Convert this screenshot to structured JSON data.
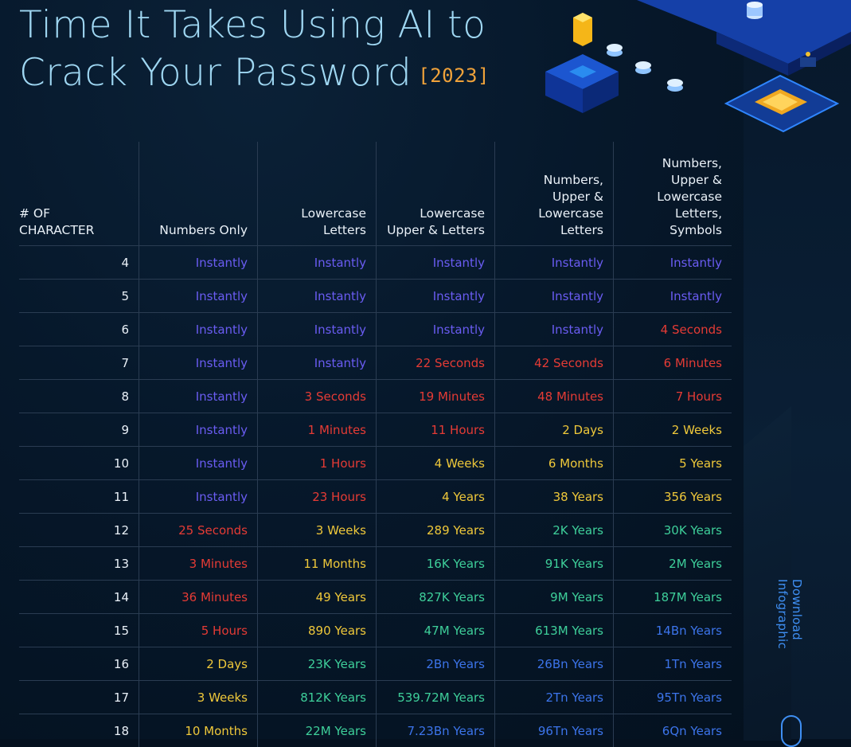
{
  "header": {
    "title_line1": "Time It Takes Using AI to",
    "title_line2": "Crack Your Password",
    "year": "[2023]"
  },
  "colors": {
    "instant": "#6a5cf2",
    "red": "#e53b35",
    "yellow": "#efc83a",
    "green": "#3ecf9a",
    "blue": "#3c74ea",
    "title": "#9fd7f2",
    "year": "#f0a23a"
  },
  "table": {
    "columns": [
      "# OF\nCHARACTER",
      "Numbers Only",
      "Lowercase\nLetters",
      "Lowercase\nUpper & Letters",
      "Numbers,\nUpper &\nLowercase\nLetters",
      "Numbers,\nUpper &\nLowercase\nLetters,\nSymbols"
    ],
    "rows": [
      {
        "chars": "4",
        "cells": [
          {
            "t": "Instantly",
            "c": "instant"
          },
          {
            "t": "Instantly",
            "c": "instant"
          },
          {
            "t": "Instantly",
            "c": "instant"
          },
          {
            "t": "Instantly",
            "c": "instant"
          },
          {
            "t": "Instantly",
            "c": "instant"
          }
        ]
      },
      {
        "chars": "5",
        "cells": [
          {
            "t": "Instantly",
            "c": "instant"
          },
          {
            "t": "Instantly",
            "c": "instant"
          },
          {
            "t": "Instantly",
            "c": "instant"
          },
          {
            "t": "Instantly",
            "c": "instant"
          },
          {
            "t": "Instantly",
            "c": "instant"
          }
        ]
      },
      {
        "chars": "6",
        "cells": [
          {
            "t": "Instantly",
            "c": "instant"
          },
          {
            "t": "Instantly",
            "c": "instant"
          },
          {
            "t": "Instantly",
            "c": "instant"
          },
          {
            "t": "Instantly",
            "c": "instant"
          },
          {
            "t": "4 Seconds",
            "c": "red"
          }
        ]
      },
      {
        "chars": "7",
        "cells": [
          {
            "t": "Instantly",
            "c": "instant"
          },
          {
            "t": "Instantly",
            "c": "instant"
          },
          {
            "t": "22 Seconds",
            "c": "red"
          },
          {
            "t": "42 Seconds",
            "c": "red"
          },
          {
            "t": "6 Minutes",
            "c": "red"
          }
        ]
      },
      {
        "chars": "8",
        "cells": [
          {
            "t": "Instantly",
            "c": "instant"
          },
          {
            "t": "3 Seconds",
            "c": "red"
          },
          {
            "t": "19 Minutes",
            "c": "red"
          },
          {
            "t": "48 Minutes",
            "c": "red"
          },
          {
            "t": "7 Hours",
            "c": "red"
          }
        ]
      },
      {
        "chars": "9",
        "cells": [
          {
            "t": "Instantly",
            "c": "instant"
          },
          {
            "t": "1 Minutes",
            "c": "red"
          },
          {
            "t": "11 Hours",
            "c": "red"
          },
          {
            "t": "2 Days",
            "c": "yellow"
          },
          {
            "t": "2 Weeks",
            "c": "yellow"
          }
        ]
      },
      {
        "chars": "10",
        "cells": [
          {
            "t": "Instantly",
            "c": "instant"
          },
          {
            "t": "1 Hours",
            "c": "red"
          },
          {
            "t": "4 Weeks",
            "c": "yellow"
          },
          {
            "t": "6 Months",
            "c": "yellow"
          },
          {
            "t": "5 Years",
            "c": "yellow"
          }
        ]
      },
      {
        "chars": "11",
        "cells": [
          {
            "t": "Instantly",
            "c": "instant"
          },
          {
            "t": "23 Hours",
            "c": "red"
          },
          {
            "t": "4 Years",
            "c": "yellow"
          },
          {
            "t": "38 Years",
            "c": "yellow"
          },
          {
            "t": "356 Years",
            "c": "yellow"
          }
        ]
      },
      {
        "chars": "12",
        "cells": [
          {
            "t": "25 Seconds",
            "c": "red"
          },
          {
            "t": "3 Weeks",
            "c": "yellow"
          },
          {
            "t": "289 Years",
            "c": "yellow"
          },
          {
            "t": "2K Years",
            "c": "green"
          },
          {
            "t": "30K Years",
            "c": "green"
          }
        ]
      },
      {
        "chars": "13",
        "cells": [
          {
            "t": "3 Minutes",
            "c": "red"
          },
          {
            "t": "11 Months",
            "c": "yellow"
          },
          {
            "t": "16K Years",
            "c": "green"
          },
          {
            "t": "91K Years",
            "c": "green"
          },
          {
            "t": "2M Years",
            "c": "green"
          }
        ]
      },
      {
        "chars": "14",
        "cells": [
          {
            "t": "36 Minutes",
            "c": "red"
          },
          {
            "t": "49 Years",
            "c": "yellow"
          },
          {
            "t": "827K Years",
            "c": "green"
          },
          {
            "t": "9M Years",
            "c": "green"
          },
          {
            "t": "187M Years",
            "c": "green"
          }
        ]
      },
      {
        "chars": "15",
        "cells": [
          {
            "t": "5 Hours",
            "c": "red"
          },
          {
            "t": "890 Years",
            "c": "yellow"
          },
          {
            "t": "47M Years",
            "c": "green"
          },
          {
            "t": "613M Years",
            "c": "green"
          },
          {
            "t": "14Bn Years",
            "c": "blue"
          }
        ]
      },
      {
        "chars": "16",
        "cells": [
          {
            "t": "2 Days",
            "c": "yellow"
          },
          {
            "t": "23K Years",
            "c": "green"
          },
          {
            "t": "2Bn Years",
            "c": "blue"
          },
          {
            "t": "26Bn Years",
            "c": "blue"
          },
          {
            "t": "1Tn Years",
            "c": "blue"
          }
        ]
      },
      {
        "chars": "17",
        "cells": [
          {
            "t": "3 Weeks",
            "c": "yellow"
          },
          {
            "t": "812K Years",
            "c": "green"
          },
          {
            "t": "539.72M Years",
            "c": "green"
          },
          {
            "t": "2Tn Years",
            "c": "blue"
          },
          {
            "t": "95Tn Years",
            "c": "blue"
          }
        ]
      },
      {
        "chars": "18",
        "cells": [
          {
            "t": "10 Months",
            "c": "yellow"
          },
          {
            "t": "22M Years",
            "c": "green"
          },
          {
            "t": "7.23Bn Years",
            "c": "blue"
          },
          {
            "t": "96Tn Years",
            "c": "blue"
          },
          {
            "t": "6Qn Years",
            "c": "blue"
          }
        ]
      }
    ]
  },
  "sidebar": {
    "download_label": "Download Infographic"
  }
}
